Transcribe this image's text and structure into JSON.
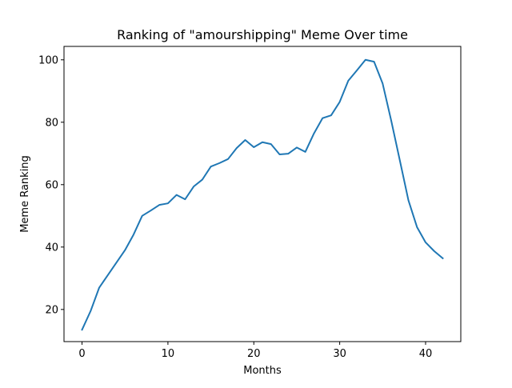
{
  "chart_data": {
    "type": "line",
    "title": "Ranking of \"amourshipping\" Meme Over time",
    "xlabel": "Months",
    "ylabel": "Meme Ranking",
    "xlim": [
      -2.1,
      44.1
    ],
    "ylim": [
      9.7,
      104.3
    ],
    "xticks": [
      0,
      10,
      20,
      30,
      40
    ],
    "yticks": [
      20,
      40,
      60,
      80,
      100
    ],
    "grid": false,
    "line_color": "#1f77b4",
    "series": [
      {
        "x": [
          0,
          1,
          2,
          3,
          4,
          5,
          6,
          7,
          8,
          9,
          10,
          11,
          12,
          13,
          14,
          15,
          16,
          17,
          18,
          19,
          20,
          21,
          22,
          23,
          24,
          25,
          26,
          27,
          28,
          29,
          30,
          31,
          32,
          33,
          34,
          35,
          36,
          37,
          38,
          39,
          40,
          41,
          42
        ],
        "values": [
          13.5,
          19.5,
          27,
          31,
          35,
          39,
          44,
          50,
          51.7,
          53.5,
          54,
          56.7,
          55.3,
          59.4,
          61.6,
          65.8,
          66.9,
          68.2,
          71.7,
          74.3,
          72,
          73.6,
          73,
          69.7,
          69.9,
          71.9,
          70.5,
          76.4,
          81.3,
          82.2,
          86.5,
          93.3,
          96.6,
          100,
          99.4,
          92.4,
          80.5,
          67.8,
          55,
          46.4,
          41.5,
          38.7,
          36.4
        ]
      }
    ]
  }
}
